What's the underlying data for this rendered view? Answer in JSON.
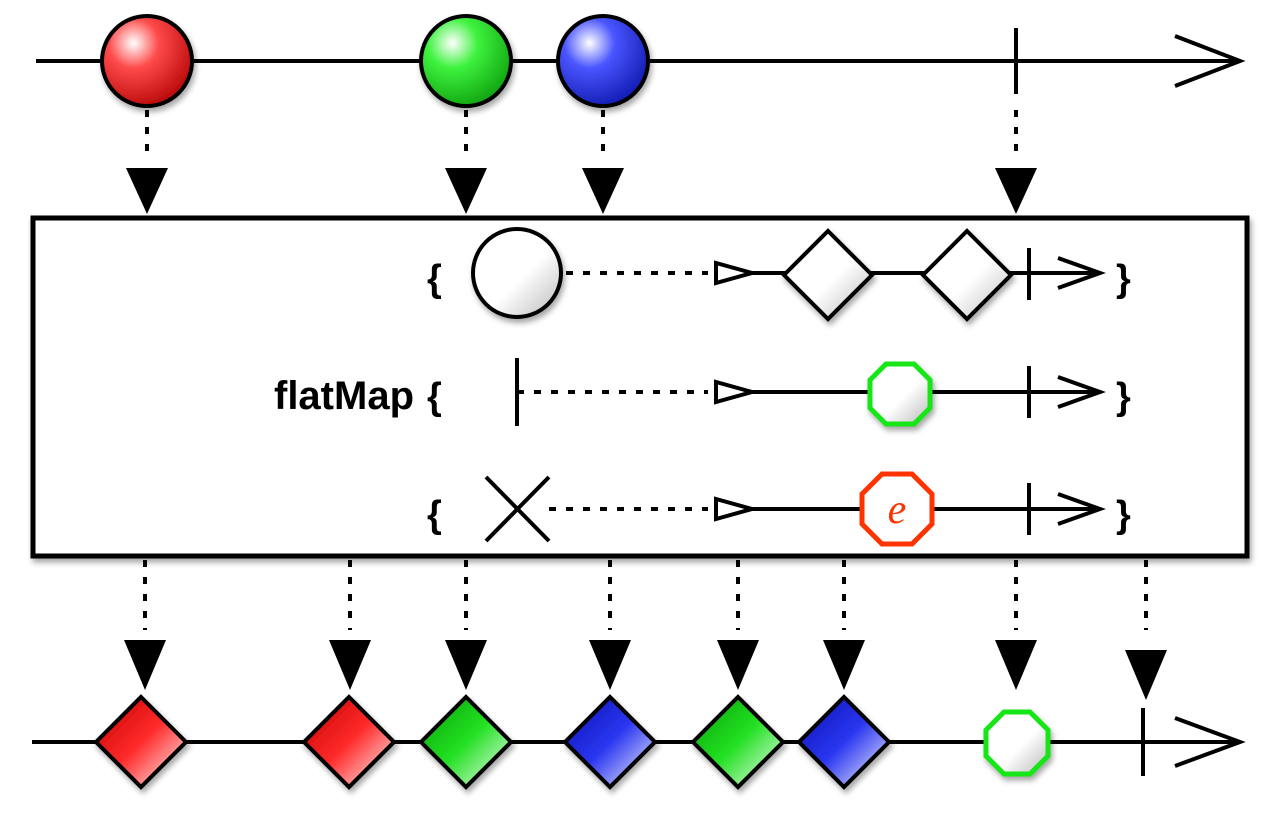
{
  "operator": {
    "label": "flatMap",
    "open_brace": "{",
    "close_brace": "}"
  },
  "mappings": [
    {
      "input": "item",
      "output": [
        "diamond",
        "diamond",
        "complete"
      ]
    },
    {
      "input": "complete",
      "output": [
        "octagon",
        "complete"
      ]
    },
    {
      "input": "error",
      "output": [
        "error",
        "complete"
      ],
      "error_letter": "e"
    }
  ],
  "colors": {
    "red": "#e8141e",
    "green": "#14d21e",
    "blue": "#2030e6",
    "white": "#ffffff",
    "stroke": "#000000",
    "error": "#ff3300"
  },
  "source_stream": [
    "red-circle",
    "green-circle",
    "blue-circle",
    "complete"
  ],
  "result_stream": [
    "red-diamond",
    "red-diamond",
    "green-diamond",
    "blue-diamond",
    "green-diamond",
    "blue-diamond",
    "green-octagon",
    "complete"
  ]
}
